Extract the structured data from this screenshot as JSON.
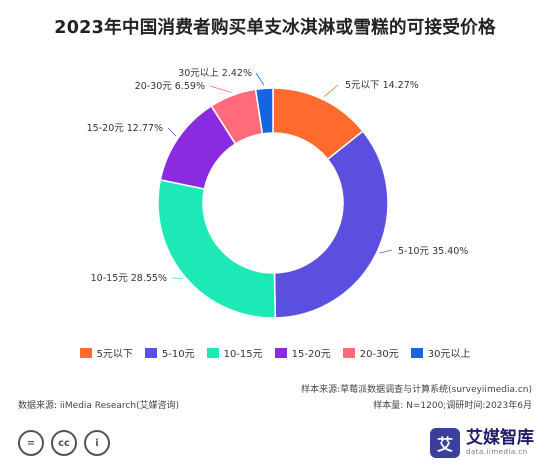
{
  "chart_data": {
    "type": "pie",
    "title": "2023年中国消费者购买单支冰淇淋或雪糕的可接受价格",
    "slices": [
      {
        "label": "5元以下",
        "value": 14.27,
        "color": "#ff6b2c"
      },
      {
        "label": "5-10元",
        "value": 35.4,
        "color": "#5b4fe0"
      },
      {
        "label": "10-15元",
        "value": 28.55,
        "color": "#1de9b6"
      },
      {
        "label": "15-20元",
        "value": 12.77,
        "color": "#8a2be2"
      },
      {
        "label": "20-30元",
        "value": 6.59,
        "color": "#ff6b7a"
      },
      {
        "label": "30元以上",
        "value": 2.42,
        "color": "#1565e0"
      }
    ],
    "value_suffix": "%",
    "legend_position": "bottom"
  },
  "notes": {
    "sample_source": "样本来源:草莓派数据调查与计算系统(surveyiimedia.cn)",
    "sample_size": "样本量: N=1200;调研时间:2023年6月",
    "data_source": "数据来源: iiMedia Research(艾媒咨询)"
  },
  "license_icons": [
    "=",
    "cc",
    "i"
  ],
  "brand": {
    "name": "艾媒智库",
    "sub": "data.iimedia.cn",
    "logo_glyph": "艾"
  }
}
